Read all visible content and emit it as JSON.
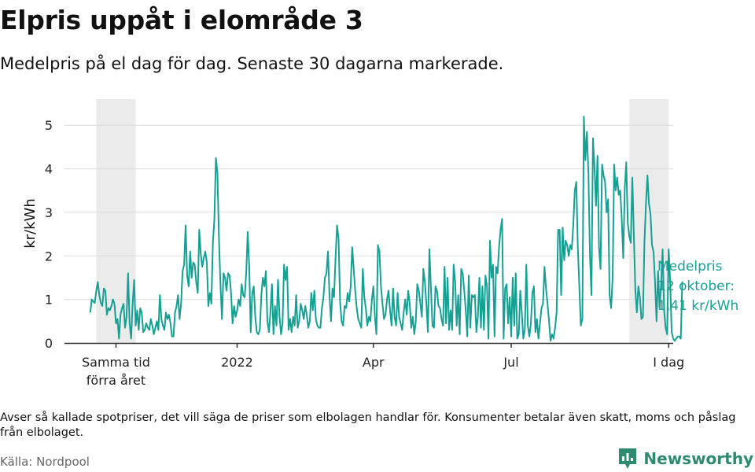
{
  "header": {
    "title": "Elpris uppåt i elområde 3",
    "subtitle": "Medelpris på el dag för dag.  Senaste 30 dagarna markerade."
  },
  "footer": {
    "note": "Avser så kallade spotpriser, det vill säga de priser som elbolagen handlar för. Konsumenter betalar även skatt, moms och påslag från elbolaget.",
    "source": "Källa: Nordpool",
    "brand": "Newsworthy"
  },
  "colors": {
    "line": "#16a094",
    "band": "#ebebeb",
    "grid": "#dcdcdc",
    "axis": "#333333",
    "brand": "#2e8a70"
  },
  "chart_data": {
    "type": "line",
    "title": "Elpris uppåt i elområde 3",
    "xlabel": "",
    "ylabel": "kr/kWh",
    "ylim": [
      0,
      5.6
    ],
    "yticks": [
      0,
      1,
      2,
      3,
      4,
      5
    ],
    "x_tick_labels": [
      {
        "day": 0,
        "label": "Samma tid",
        "label2": "förra året"
      },
      {
        "day": 80,
        "label": "2022",
        "label2": ""
      },
      {
        "day": 170,
        "label": "Apr",
        "label2": ""
      },
      {
        "day": 261,
        "label": "Jul",
        "label2": ""
      },
      {
        "day": 365,
        "label": "I dag",
        "label2": ""
      }
    ],
    "highlight_ranges_days": [
      [
        -13,
        13
      ],
      [
        339,
        365
      ]
    ],
    "x_range_days": [
      -34,
      368
    ],
    "start_day": -17,
    "annotation": {
      "lines": [
        "Medelpris",
        "12 oktober:",
        "1,41 kr/kWh"
      ],
      "value": 1.41
    },
    "series": [
      {
        "name": "Medelpris kr/kWh",
        "values": [
          0.7,
          1.0,
          0.95,
          0.92,
          1.2,
          1.4,
          1.1,
          0.92,
          0.85,
          1.25,
          1.2,
          0.65,
          0.8,
          0.75,
          0.85,
          1.0,
          0.9,
          0.45,
          0.55,
          0.1,
          0.65,
          0.8,
          0.9,
          0.35,
          0.6,
          1.6,
          0.45,
          0.1,
          0.9,
          1.45,
          0.4,
          0.75,
          0.3,
          0.8,
          0.7,
          0.25,
          0.3,
          0.45,
          0.35,
          0.3,
          0.55,
          0.4,
          0.2,
          0.35,
          0.5,
          0.3,
          1.1,
          0.55,
          0.4,
          0.3,
          0.7,
          0.55,
          0.65,
          0.45,
          0.15,
          0.15,
          0.7,
          0.85,
          1.1,
          0.55,
          0.9,
          1.65,
          1.8,
          2.7,
          1.55,
          1.3,
          2.1,
          1.5,
          1.85,
          1.8,
          1.4,
          1.15,
          2.6,
          2.05,
          1.75,
          1.95,
          2.1,
          1.85,
          0.85,
          1.15,
          0.9,
          2.3,
          2.85,
          4.25,
          3.9,
          2.4,
          1.35,
          0.55,
          1.6,
          1.5,
          1.2,
          1.6,
          1.55,
          1.15,
          0.45,
          0.85,
          0.6,
          0.75,
          1.0,
          0.85,
          1.35,
          1.1,
          1.05,
          1.6,
          2.55,
          1.75,
          0.25,
          1.15,
          1.3,
          0.6,
          0.25,
          0.2,
          0.3,
          1.1,
          1.5,
          1.3,
          1.65,
          0.5,
          0.25,
          0.7,
          1.35,
          0.2,
          0.85,
          0.4,
          1.45,
          0.6,
          0.2,
          0.45,
          1.8,
          1.45,
          1.75,
          0.3,
          0.55,
          0.25,
          0.6,
          0.4,
          1.1,
          0.35,
          0.5,
          0.9,
          0.75,
          0.55,
          0.85,
          0.65,
          0.35,
          0.5,
          1.15,
          0.75,
          1.2,
          0.55,
          0.4,
          0.35,
          0.35,
          0.8,
          1.05,
          1.5,
          1.6,
          2.1,
          1.1,
          0.5,
          1.25,
          1.05,
          1.95,
          2.7,
          2.4,
          0.95,
          0.5,
          0.4,
          0.85,
          0.8,
          1.15,
          0.95,
          1.3,
          2.2,
          1.7,
          1.2,
          0.8,
          0.55,
          0.45,
          0.35,
          1.7,
          1.05,
          0.8,
          0.4,
          0.6,
          0.5,
          1.0,
          1.3,
          0.6,
          0.2,
          2.25,
          2.1,
          1.3,
          0.9,
          0.55,
          0.65,
          1.0,
          1.2,
          0.75,
          0.4,
          1.25,
          0.6,
          0.4,
          1.15,
          0.6,
          0.45,
          0.3,
          0.7,
          1.0,
          0.65,
          1.2,
          0.9,
          0.35,
          0.6,
          0.2,
          0.5,
          1.35,
          1.2,
          0.9,
          0.6,
          1.7,
          1.4,
          0.9,
          0.25,
          2.15,
          1.25,
          0.4,
          0.35,
          1.3,
          1.2,
          0.85,
          0.8,
          0.55,
          0.4,
          1.75,
          0.45,
          1.5,
          0.3,
          0.75,
          0.3,
          1.8,
          1.4,
          0.4,
          1.1,
          0.2,
          1.7,
          1.6,
          1.2,
          0.75,
          0.15,
          1.55,
          0.35,
          1.1,
          1.05,
          1.1,
          0.25,
          0.6,
          1.5,
          0.35,
          1.3,
          0.3,
          1.55,
          1.3,
          0.1,
          2.35,
          1.5,
          1.8,
          0.15,
          1.75,
          1.6,
          2.2,
          2.6,
          2.85,
          0.1,
          1.25,
          1.35,
          0.45,
          1.05,
          0.15,
          1.5,
          0.4,
          1.6,
          0.1,
          0.2,
          1.2,
          0.7,
          0.1,
          0.3,
          1.8,
          0.4,
          0.15,
          0.45,
          1.15,
          1.3,
          0.25,
          0.55,
          0.1,
          0.45,
          0.8,
          0.9,
          1.75,
          1.25,
          0.9,
          0.5,
          0.05,
          0.2,
          0.1,
          0.35,
          0.7,
          2.6,
          2.6,
          1.1,
          2.65,
          1.9,
          2.35,
          2.25,
          2.0,
          2.25,
          2.15,
          2.7,
          3.5,
          3.7,
          2.2,
          1.3,
          0.4,
          0.55,
          5.2,
          4.2,
          4.85,
          3.9,
          2.05,
          1.1,
          4.7,
          4.05,
          3.15,
          4.3,
          2.2,
          1.7,
          4.1,
          3.85,
          3.7,
          3.0,
          3.3,
          1.1,
          0.8,
          1.5,
          4.1,
          3.5,
          3.8,
          3.4,
          3.5,
          2.85,
          1.95,
          3.55,
          4.15,
          2.75,
          2.45,
          2.3,
          3.8,
          2.5,
          1.2,
          0.7,
          1.3,
          1.05,
          0.55,
          0.6,
          2.3,
          3.2,
          3.85,
          3.2,
          2.95,
          2.25,
          2.1,
          1.4,
          0.5,
          1.65,
          0.8,
          1.35,
          2.15,
          0.75,
          0.35,
          0.2,
          2.15,
          1.4,
          0.25,
          0.1,
          0.05,
          0.1,
          0.15,
          0.15,
          0.1,
          1.41
        ]
      }
    ]
  }
}
